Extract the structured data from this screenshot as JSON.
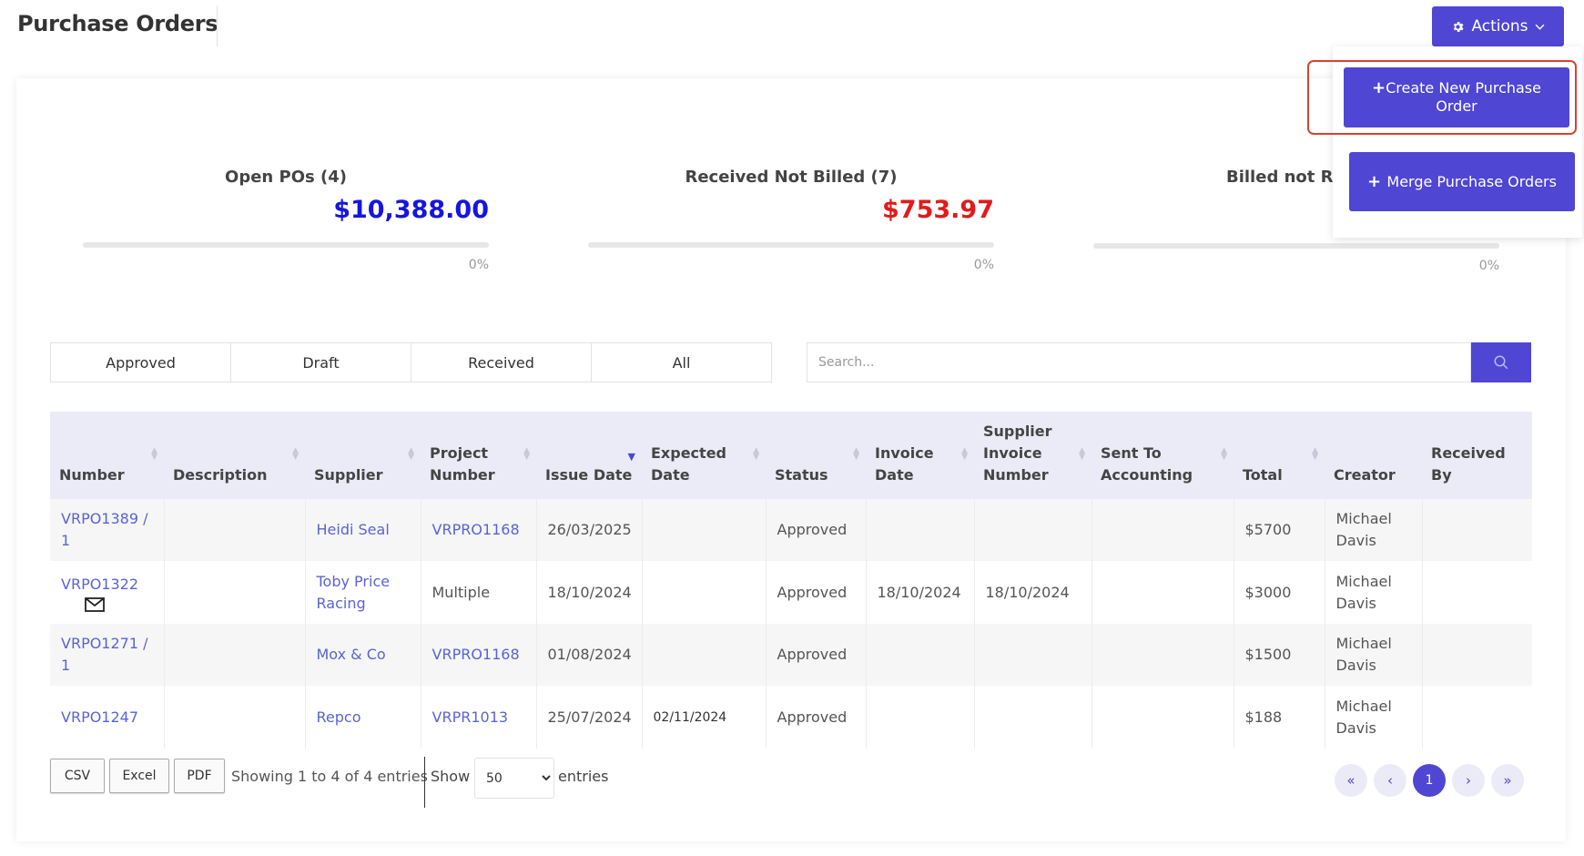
{
  "page": {
    "title": "Purchase Orders"
  },
  "actions": {
    "label": "Actions",
    "menu": {
      "create": "Create New Purchase Order",
      "merge": "Merge Purchase Orders"
    }
  },
  "stats": [
    {
      "label": "Open POs (4)",
      "value": "$10,388.00",
      "value_color": "#1515e0",
      "progress": 0,
      "pct": "0%"
    },
    {
      "label": "Received Not Billed (7)",
      "value": "$753.97",
      "value_color": "#e11b1b",
      "progress": 0,
      "pct": "0%"
    },
    {
      "label": "Billed not Rec",
      "value": "",
      "value_color": "#e11b1b",
      "progress": 0,
      "pct": "0%"
    }
  ],
  "tabs": [
    "Approved",
    "Draft",
    "Received",
    "All"
  ],
  "search": {
    "placeholder": "Search..."
  },
  "table": {
    "columns": [
      {
        "label": "Number",
        "sort": "both"
      },
      {
        "label": "Description",
        "sort": "both"
      },
      {
        "label": "Supplier",
        "sort": "both"
      },
      {
        "label": "Project Number",
        "sort": "both"
      },
      {
        "label": "Issue Date",
        "sort": "desc"
      },
      {
        "label": "Expected Date",
        "sort": "both"
      },
      {
        "label": "Status",
        "sort": "both"
      },
      {
        "label": "Invoice Date",
        "sort": "both"
      },
      {
        "label": "Supplier Invoice Number",
        "sort": "both"
      },
      {
        "label": "Sent To Accounting",
        "sort": "both"
      },
      {
        "label": "Total",
        "sort": "both"
      },
      {
        "label": "Creator",
        "sort": "none"
      },
      {
        "label": "Received By",
        "sort": "none"
      }
    ],
    "rows": [
      {
        "number": "VRPO1389 / 1",
        "description": "",
        "supplier": "Heidi Seal",
        "project": "VRPRO1168",
        "project_link": true,
        "issue_date": "26/03/2025",
        "expected_date": "",
        "status": "Approved",
        "invoice_date": "",
        "supplier_invoice": "",
        "sent_to_accounting": "",
        "total": "$5700",
        "creator": "Michael Davis",
        "received_by": "",
        "email_icon": false
      },
      {
        "number": "VRPO1322",
        "description": "",
        "supplier": "Toby Price Racing",
        "project": "Multiple",
        "project_link": false,
        "issue_date": "18/10/2024",
        "expected_date": "",
        "status": "Approved",
        "invoice_date": "18/10/2024",
        "supplier_invoice": "18/10/2024",
        "sent_to_accounting": "",
        "total": "$3000",
        "creator": "Michael Davis",
        "received_by": "",
        "email_icon": true
      },
      {
        "number": "VRPO1271 / 1",
        "description": "",
        "supplier": "Mox & Co",
        "project": "VRPRO1168",
        "project_link": true,
        "issue_date": "01/08/2024",
        "expected_date": "",
        "status": "Approved",
        "invoice_date": "",
        "supplier_invoice": "",
        "sent_to_accounting": "",
        "total": "$1500",
        "creator": "Michael Davis",
        "received_by": "",
        "email_icon": false
      },
      {
        "number": "VRPO1247",
        "description": "",
        "supplier": "Repco",
        "project": "VRPR1013",
        "project_link": true,
        "issue_date": "25/07/2024",
        "expected_date": "02/11/2024",
        "status": "Approved",
        "invoice_date": "",
        "supplier_invoice": "",
        "sent_to_accounting": "",
        "total": "$188",
        "creator": "Michael Davis",
        "received_by": "",
        "email_icon": false
      }
    ]
  },
  "export": {
    "csv": "CSV",
    "excel": "Excel",
    "pdf": "PDF"
  },
  "info": "Showing 1 to 4 of 4 entries",
  "length": {
    "show": "Show",
    "value": "50",
    "entries": "entries"
  },
  "pagination": {
    "current": "1"
  },
  "icons": {
    "actions": "gear-icon",
    "caret": "chevron-down-icon",
    "plus": "plus-icon",
    "search": "search-icon",
    "email": "envelope-icon"
  },
  "colors": {
    "accent": "#5046d4",
    "link": "#5a63d8",
    "header_bg": "#ebebf8",
    "highlight_border": "#d64235"
  }
}
